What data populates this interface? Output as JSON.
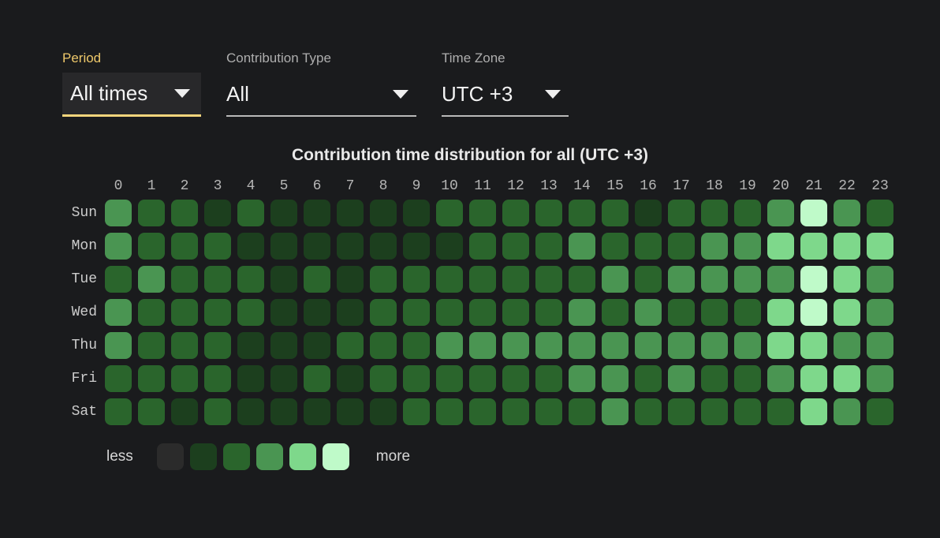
{
  "filters": {
    "period": {
      "label": "Period",
      "value": "All times"
    },
    "contribution_type": {
      "label": "Contribution Type",
      "value": "All"
    },
    "time_zone": {
      "label": "Time Zone",
      "value": "UTC +3"
    }
  },
  "legend": {
    "less_label": "less",
    "more_label": "more"
  },
  "colors": {
    "background": "#1a1b1d",
    "accent_yellow_label": "#eec86a",
    "accent_yellow_underline": "#f6d57c",
    "select_bg": "#28282a",
    "level_palette": [
      "#2b2b2b",
      "#1c3f1e",
      "#2a652c",
      "#4a9552",
      "#7ed88b",
      "#bffac9"
    ]
  },
  "chart_data": {
    "type": "heatmap",
    "title": "Contribution time distribution for all (UTC +3)",
    "x_categories": [
      "0",
      "1",
      "2",
      "3",
      "4",
      "5",
      "6",
      "7",
      "8",
      "9",
      "10",
      "11",
      "12",
      "13",
      "14",
      "15",
      "16",
      "17",
      "18",
      "19",
      "20",
      "21",
      "22",
      "23"
    ],
    "y_categories": [
      "Sun",
      "Mon",
      "Tue",
      "Wed",
      "Thu",
      "Fri",
      "Sat"
    ],
    "value_scale": "color intensity level 0 (less) to 5 (more)",
    "levels": [
      [
        3,
        2,
        2,
        1,
        2,
        1,
        1,
        1,
        1,
        1,
        2,
        2,
        2,
        2,
        2,
        2,
        1,
        2,
        2,
        2,
        3,
        5,
        3,
        2
      ],
      [
        3,
        2,
        2,
        2,
        1,
        1,
        1,
        1,
        1,
        1,
        1,
        2,
        2,
        2,
        3,
        2,
        2,
        2,
        3,
        3,
        4,
        4,
        4,
        4
      ],
      [
        2,
        3,
        2,
        2,
        2,
        1,
        2,
        1,
        2,
        2,
        2,
        2,
        2,
        2,
        2,
        3,
        2,
        3,
        3,
        3,
        3,
        5,
        4,
        3
      ],
      [
        3,
        2,
        2,
        2,
        2,
        1,
        1,
        1,
        2,
        2,
        2,
        2,
        2,
        2,
        3,
        2,
        3,
        2,
        2,
        2,
        4,
        5,
        4,
        3
      ],
      [
        3,
        2,
        2,
        2,
        1,
        1,
        1,
        2,
        2,
        2,
        3,
        3,
        3,
        3,
        3,
        3,
        3,
        3,
        3,
        3,
        4,
        4,
        3,
        3
      ],
      [
        2,
        2,
        2,
        2,
        1,
        1,
        2,
        1,
        2,
        2,
        2,
        2,
        2,
        2,
        3,
        3,
        2,
        3,
        2,
        2,
        3,
        4,
        4,
        3
      ],
      [
        2,
        2,
        1,
        2,
        1,
        1,
        1,
        1,
        1,
        2,
        2,
        2,
        2,
        2,
        2,
        3,
        2,
        2,
        2,
        2,
        2,
        4,
        3,
        2
      ]
    ],
    "legend": {
      "position": "bottom",
      "labels": [
        "less",
        "more"
      ],
      "swatch_levels": [
        0,
        1,
        2,
        3,
        4,
        5
      ]
    }
  }
}
